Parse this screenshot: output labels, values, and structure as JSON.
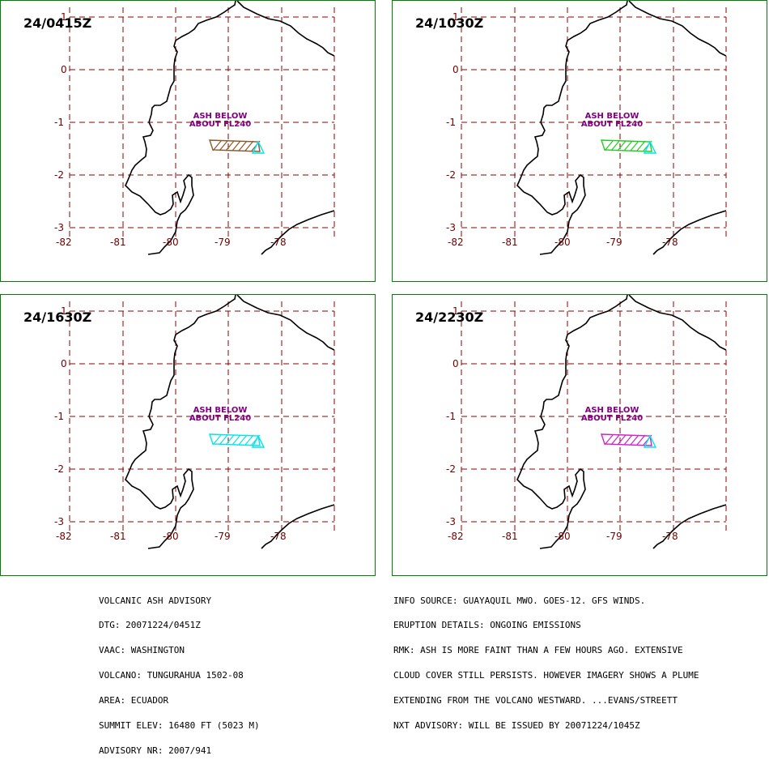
{
  "colors": {
    "frame": "#008000",
    "grid": "#8b0000",
    "coast": "#000000",
    "label": "#800080",
    "volcano": "#00e5ee"
  },
  "panels": [
    {
      "time": "24/0415Z",
      "ash_color": "#8b5a2b"
    },
    {
      "time": "24/1030Z",
      "ash_color": "#22cc22"
    },
    {
      "time": "24/1630Z",
      "ash_color": "#00e5ee"
    },
    {
      "time": "24/2230Z",
      "ash_color": "#d020d0"
    }
  ],
  "ash_label": {
    "line1": "ASH BELOW",
    "line2": "ABOUT FL240"
  },
  "lat_labels": [
    "1",
    "0",
    "-1",
    "-2",
    "-3"
  ],
  "lon_labels": [
    "-82",
    "-81",
    "-80",
    "-79",
    "-78"
  ],
  "advisory_left": [
    "VOLCANIC ASH ADVISORY",
    "DTG: 20071224/0451Z",
    "VAAC: WASHINGTON",
    "VOLCANO: TUNGURAHUA 1502-08",
    "AREA: ECUADOR",
    "SUMMIT ELEV: 16480 FT (5023 M)",
    "ADVISORY NR: 2007/941"
  ],
  "advisory_right": [
    "INFO SOURCE: GUAYAQUIL MWO. GOES-12. GFS WINDS.",
    "ERUPTION DETAILS: ONGOING EMISSIONS",
    "RMK: ASH IS MORE FAINT THAN A FEW HOURS AGO. EXTENSIVE",
    "CLOUD COVER STILL PERSISTS. HOWEVER IMAGERY SHOWS A PLUME",
    "EXTENDING FROM THE VOLCANO WESTWARD. ...EVANS/STREETT",
    "NXT ADVISORY: WILL BE ISSUED BY 20071224/1045Z"
  ]
}
